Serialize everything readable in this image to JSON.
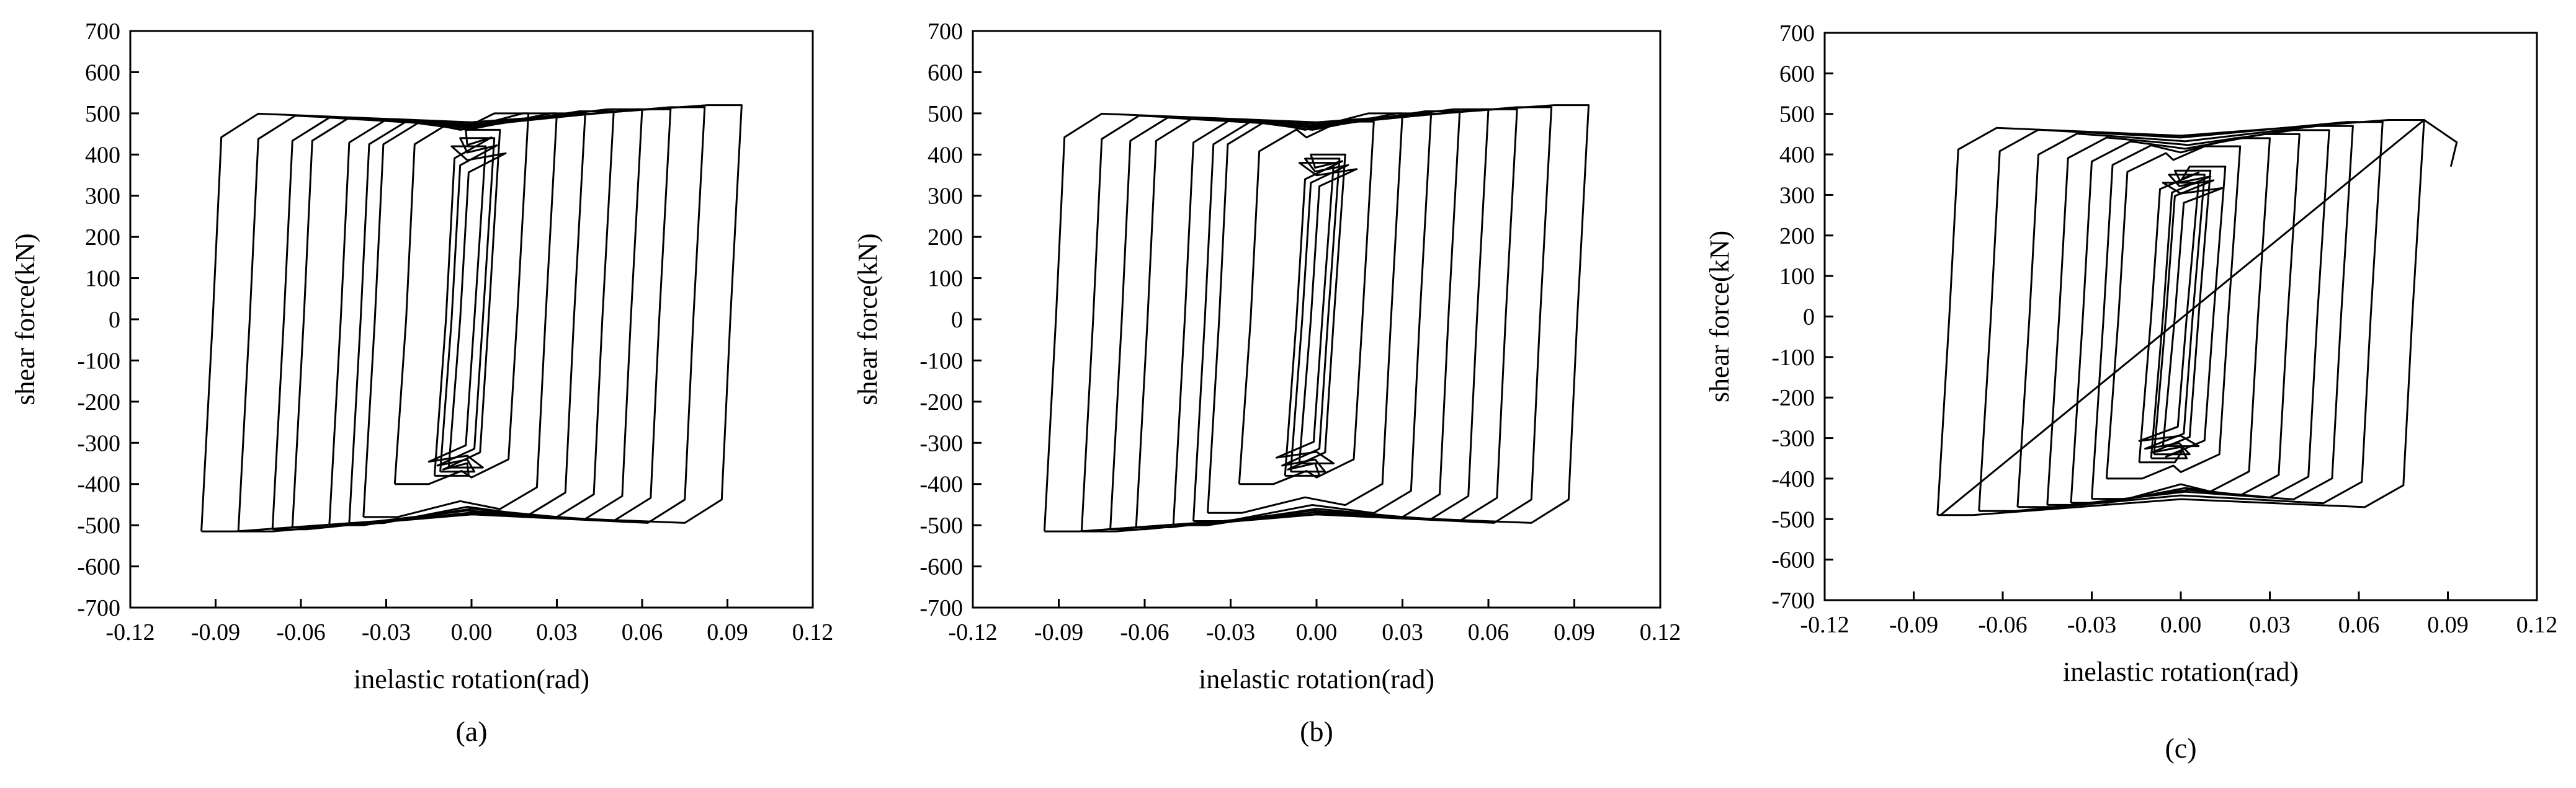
{
  "figure": {
    "panels": [
      {
        "id": "a",
        "caption": "(a)"
      },
      {
        "id": "b",
        "caption": "(b)"
      },
      {
        "id": "c",
        "caption": "(c)"
      }
    ]
  },
  "chart_data": [
    {
      "type": "line",
      "panel": "a",
      "caption": "(a)",
      "xlabel": "inelastic rotation(rad)",
      "ylabel": "shear force(kN)",
      "xlim": [
        -0.12,
        0.12
      ],
      "ylim": [
        -700,
        700
      ],
      "xticks": [
        "-0.12",
        "-0.09",
        "-0.06",
        "-0.03",
        "0.00",
        "0.03",
        "0.06",
        "0.09",
        "0.12"
      ],
      "yticks": [
        "700",
        "600",
        "500",
        "400",
        "300",
        "200",
        "100",
        "0",
        "-100",
        "-200",
        "-300",
        "-400",
        "-500",
        "-600",
        "-700"
      ],
      "grid": false,
      "legend": "none",
      "loops": [
        {
          "amp": 0.005,
          "neg": 0.008,
          "top": 420,
          "bot": -360
        },
        {
          "amp": 0.008,
          "neg": 0.011,
          "top": 440,
          "bot": -370
        },
        {
          "amp": 0.01,
          "neg": 0.013,
          "top": 460,
          "bot": -380
        },
        {
          "amp": 0.02,
          "neg": 0.027,
          "top": 500,
          "bot": -400
        },
        {
          "amp": 0.03,
          "neg": 0.038,
          "top": 500,
          "bot": -480
        },
        {
          "amp": 0.04,
          "neg": 0.043,
          "top": 500,
          "bot": -495
        },
        {
          "amp": 0.05,
          "neg": 0.05,
          "top": 505,
          "bot": -500
        },
        {
          "amp": 0.06,
          "neg": 0.063,
          "top": 510,
          "bot": -505
        },
        {
          "amp": 0.07,
          "neg": 0.07,
          "top": 510,
          "bot": -510
        },
        {
          "amp": 0.082,
          "neg": 0.082,
          "top": 515,
          "bot": -515
        },
        {
          "amp": 0.095,
          "neg": 0.095,
          "top": 520,
          "bot": -515
        }
      ]
    },
    {
      "type": "line",
      "panel": "b",
      "caption": "(b)",
      "xlabel": "inelastic rotation(rad)",
      "ylabel": "shear force(kN)",
      "xlim": [
        -0.12,
        0.12
      ],
      "ylim": [
        -700,
        700
      ],
      "xticks": [
        "-0.12",
        "-0.09",
        "-0.06",
        "-0.03",
        "0.00",
        "0.03",
        "0.06",
        "0.09",
        "0.12"
      ],
      "yticks": [
        "700",
        "600",
        "500",
        "400",
        "300",
        "200",
        "100",
        "0",
        "-100",
        "-200",
        "-300",
        "-400",
        "-500",
        "-600",
        "-700"
      ],
      "grid": false,
      "legend": "none",
      "loops": [
        {
          "amp": 0.006,
          "neg": 0.006,
          "top": 380,
          "bot": -350
        },
        {
          "amp": 0.008,
          "neg": 0.009,
          "top": 390,
          "bot": -370
        },
        {
          "amp": 0.01,
          "neg": 0.011,
          "top": 400,
          "bot": -380
        },
        {
          "amp": 0.02,
          "neg": 0.027,
          "top": 480,
          "bot": -400
        },
        {
          "amp": 0.03,
          "neg": 0.038,
          "top": 500,
          "bot": -470
        },
        {
          "amp": 0.04,
          "neg": 0.043,
          "top": 500,
          "bot": -490
        },
        {
          "amp": 0.05,
          "neg": 0.05,
          "top": 505,
          "bot": -500
        },
        {
          "amp": 0.06,
          "neg": 0.063,
          "top": 510,
          "bot": -505
        },
        {
          "amp": 0.07,
          "neg": 0.072,
          "top": 510,
          "bot": -510
        },
        {
          "amp": 0.082,
          "neg": 0.082,
          "top": 515,
          "bot": -515
        },
        {
          "amp": 0.095,
          "neg": 0.095,
          "top": 520,
          "bot": -515
        }
      ]
    },
    {
      "type": "line",
      "panel": "c",
      "caption": "(c)",
      "xlabel": "inelastic rotation(rad)",
      "ylabel": "shear force(kN)",
      "xlim": [
        -0.12,
        0.12
      ],
      "ylim": [
        -700,
        700
      ],
      "xticks": [
        "-0.12",
        "-0.09",
        "-0.06",
        "-0.03",
        "0.00",
        "0.03",
        "0.06",
        "0.09",
        "0.12"
      ],
      "yticks": [
        "700",
        "600",
        "500",
        "400",
        "300",
        "200",
        "100",
        "0",
        "-100",
        "-200",
        "-300",
        "-400",
        "-500",
        "-600",
        "-700"
      ],
      "grid": false,
      "legend": "none",
      "loops": [
        {
          "amp": 0.006,
          "neg": 0.006,
          "top": 330,
          "bot": -320
        },
        {
          "amp": 0.008,
          "neg": 0.009,
          "top": 350,
          "bot": -340
        },
        {
          "amp": 0.01,
          "neg": 0.01,
          "top": 360,
          "bot": -350
        },
        {
          "amp": 0.015,
          "neg": 0.014,
          "top": 370,
          "bot": -360
        },
        {
          "amp": 0.02,
          "neg": 0.025,
          "top": 420,
          "bot": -400
        },
        {
          "amp": 0.03,
          "neg": 0.03,
          "top": 440,
          "bot": -450
        },
        {
          "amp": 0.04,
          "neg": 0.037,
          "top": 450,
          "bot": -460
        },
        {
          "amp": 0.05,
          "neg": 0.045,
          "top": 460,
          "bot": -465
        },
        {
          "amp": 0.058,
          "neg": 0.055,
          "top": 470,
          "bot": -470
        },
        {
          "amp": 0.068,
          "neg": 0.068,
          "top": 480,
          "bot": -480
        },
        {
          "amp": 0.082,
          "neg": 0.082,
          "top": 485,
          "bot": -490
        }
      ],
      "tail": [
        [
          -0.081,
          -490
        ],
        [
          0.082,
          485
        ],
        [
          0.093,
          430
        ],
        [
          0.091,
          370
        ]
      ]
    }
  ]
}
